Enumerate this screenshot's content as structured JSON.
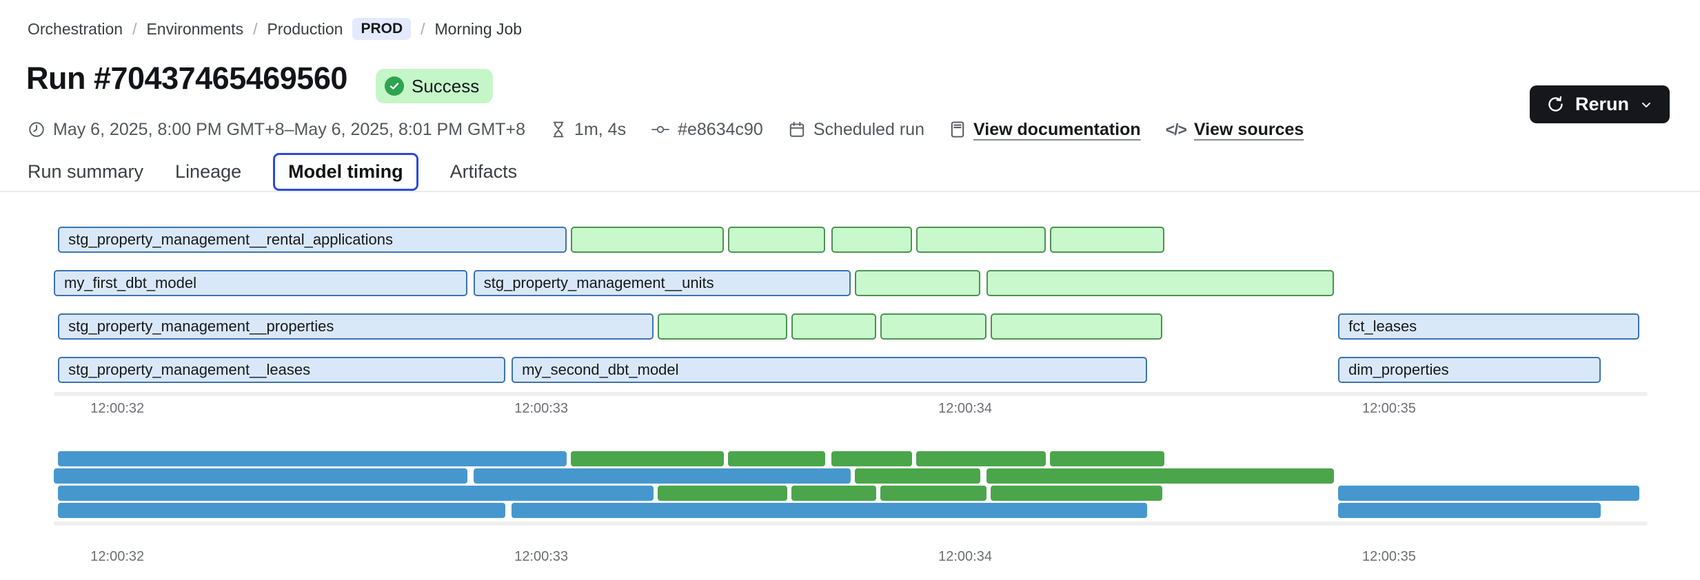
{
  "breadcrumb": {
    "separator": "/",
    "items": [
      {
        "label": "Orchestration",
        "type": "link"
      },
      {
        "label": "Environments",
        "type": "link"
      },
      {
        "label": "Production",
        "type": "link"
      },
      {
        "label": "PROD",
        "type": "badge"
      },
      {
        "label": "Morning Job",
        "type": "current"
      }
    ]
  },
  "header": {
    "run_title": "Run #70437465469560",
    "status": "Success"
  },
  "meta": {
    "time_range": "May 6, 2025, 8:00 PM GMT+8–May 6, 2025, 8:01 PM GMT+8",
    "duration": "1m, 4s",
    "commit": "#e8634c90",
    "trigger": "Scheduled run",
    "documentation_link": "View documentation",
    "sources_link": "View sources",
    "code_glyph": "</>"
  },
  "actions": {
    "rerun_label": "Rerun"
  },
  "tabs": [
    {
      "label": "Run summary",
      "active": false
    },
    {
      "label": "Lineage",
      "active": false
    },
    {
      "label": "Model timing",
      "active": true
    },
    {
      "label": "Artifacts",
      "active": false
    }
  ],
  "colors": {
    "accent": "#2b4bd7",
    "bar_blue_fill": "#d9e8f8",
    "bar_blue_border": "#3d73ad",
    "bar_green_fill": "#c8f8cc",
    "bar_green_border": "#4b9351",
    "mini_blue": "#4697ce",
    "mini_green": "#4ba54b",
    "success_bg": "#c5f6c8",
    "success_dot": "#2da44e",
    "prod_badge_bg": "#e4eafd",
    "rerun_bg": "#15171d"
  },
  "chart_data": {
    "type": "gantt",
    "title": "Model timing",
    "axis": {
      "t_min": 31.85,
      "t_max": 35.61,
      "ticks": [
        {
          "label": "12:00:32",
          "t": 32
        },
        {
          "label": "12:00:33",
          "t": 33
        },
        {
          "label": "12:00:34",
          "t": 34
        },
        {
          "label": "12:00:35",
          "t": 35
        }
      ]
    },
    "rows": [
      [
        {
          "label": "stg_property_management__rental_applications",
          "type": "blue",
          "start": 31.86,
          "end": 33.06
        },
        {
          "label": "",
          "type": "green",
          "start": 33.07,
          "end": 33.43
        },
        {
          "label": "",
          "type": "green",
          "start": 33.44,
          "end": 33.67
        },
        {
          "label": "",
          "type": "green",
          "start": 33.685,
          "end": 33.875
        },
        {
          "label": "",
          "type": "green",
          "start": 33.885,
          "end": 34.19
        },
        {
          "label": "",
          "type": "green",
          "start": 34.2,
          "end": 34.47
        }
      ],
      [
        {
          "label": "my_first_dbt_model",
          "type": "blue",
          "start": 31.85,
          "end": 32.825
        },
        {
          "label": "stg_property_management__units",
          "type": "blue",
          "start": 32.84,
          "end": 33.73
        },
        {
          "label": "",
          "type": "green",
          "start": 33.74,
          "end": 34.035
        },
        {
          "label": "",
          "type": "green",
          "start": 34.05,
          "end": 34.87
        }
      ],
      [
        {
          "label": "stg_property_management__properties",
          "type": "blue",
          "start": 31.86,
          "end": 33.265
        },
        {
          "label": "",
          "type": "green",
          "start": 33.275,
          "end": 33.58
        },
        {
          "label": "",
          "type": "green",
          "start": 33.59,
          "end": 33.79
        },
        {
          "label": "",
          "type": "green",
          "start": 33.8,
          "end": 34.05
        },
        {
          "label": "",
          "type": "green",
          "start": 34.06,
          "end": 34.465
        },
        {
          "label": "fct_leases",
          "type": "blue",
          "start": 34.88,
          "end": 35.59
        }
      ],
      [
        {
          "label": "stg_property_management__leases",
          "type": "blue",
          "start": 31.86,
          "end": 32.915
        },
        {
          "label": "my_second_dbt_model",
          "type": "blue",
          "start": 32.93,
          "end": 34.43
        },
        {
          "label": "dim_properties",
          "type": "blue",
          "start": 34.88,
          "end": 35.5
        }
      ]
    ]
  }
}
